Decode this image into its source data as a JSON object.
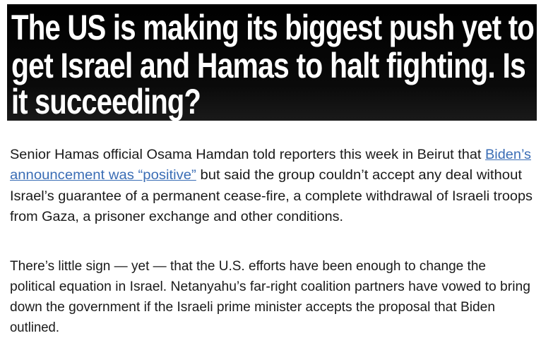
{
  "headline": {
    "lines": [
      "The US is making its biggest push yet to",
      "get Israel and Hamas to halt fighting. Is",
      "it succeeding?"
    ]
  },
  "paragraphs": [
    {
      "lines": [
        {
          "pre": "Senior Hamas official Osama Hamdan told reporters this week in Beirut that ",
          "link": "Biden’s",
          "post": ""
        },
        {
          "pre": "",
          "link": "announcement was “positive”",
          "post": " but said the group couldn’t accept any deal without"
        },
        {
          "pre": "Israel’s guarantee of a permanent cease-fire, a complete withdrawal of Israeli troops",
          "link": "",
          "post": ""
        },
        {
          "pre": "from Gaza, a prisoner exchange and other conditions.",
          "link": "",
          "post": ""
        }
      ]
    },
    {
      "lines": [
        {
          "pre": "There’s little sign — yet — that the U.S. efforts have been enough to change the",
          "link": "",
          "post": ""
        },
        {
          "pre": "political equation in Israel. Netanyahu’s far-right coalition partners have vowed to bring",
          "link": "",
          "post": ""
        },
        {
          "pre": "down the government if the Israeli prime minister accepts the proposal that Biden",
          "link": "",
          "post": ""
        },
        {
          "pre": "outlined.",
          "link": "",
          "post": ""
        }
      ]
    }
  ],
  "colors": {
    "link": "#3a6db5",
    "headline_bg": "#000000",
    "text": "#1a1a1a"
  }
}
